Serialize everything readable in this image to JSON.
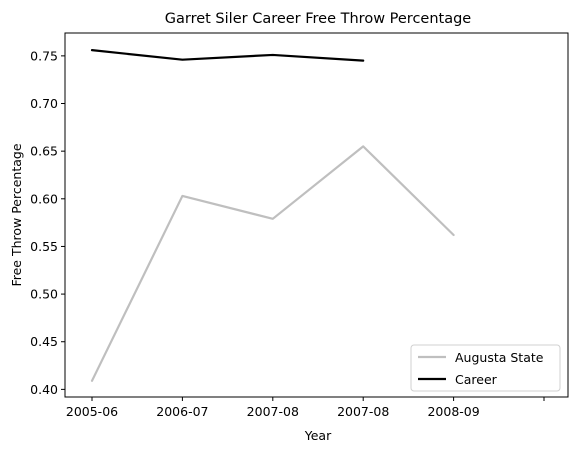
{
  "chart_data": {
    "type": "line",
    "title": "Garret Siler Career Free Throw Percentage",
    "xlabel": "Year",
    "ylabel": "Free Throw Percentage",
    "x_index_range": [
      0,
      5
    ],
    "x_ticks": [
      {
        "pos": 0,
        "label": "2005-06"
      },
      {
        "pos": 1,
        "label": "2006-07"
      },
      {
        "pos": 2,
        "label": "2007-08"
      },
      {
        "pos": 3,
        "label": "2007-08"
      },
      {
        "pos": 4,
        "label": "2008-09"
      },
      {
        "pos": 5,
        "label": ""
      }
    ],
    "ylim": [
      0.392,
      0.774
    ],
    "y_ticks": [
      0.4,
      0.45,
      0.5,
      0.55,
      0.6,
      0.65,
      0.7,
      0.75
    ],
    "grid": false,
    "legend_position": "lower-right",
    "series": [
      {
        "name": "Augusta State",
        "color": "#bfbfbf",
        "points": [
          {
            "x": 0,
            "y": 0.409
          },
          {
            "x": 1,
            "y": 0.603
          },
          {
            "x": 2,
            "y": 0.579
          },
          {
            "x": 3,
            "y": 0.655
          },
          {
            "x": 4,
            "y": 0.562
          }
        ]
      },
      {
        "name": "Career",
        "color": "#000000",
        "points": [
          {
            "x": 0,
            "y": 0.756
          },
          {
            "x": 1,
            "y": 0.746
          },
          {
            "x": 2,
            "y": 0.751
          },
          {
            "x": 3,
            "y": 0.745
          }
        ]
      }
    ]
  }
}
